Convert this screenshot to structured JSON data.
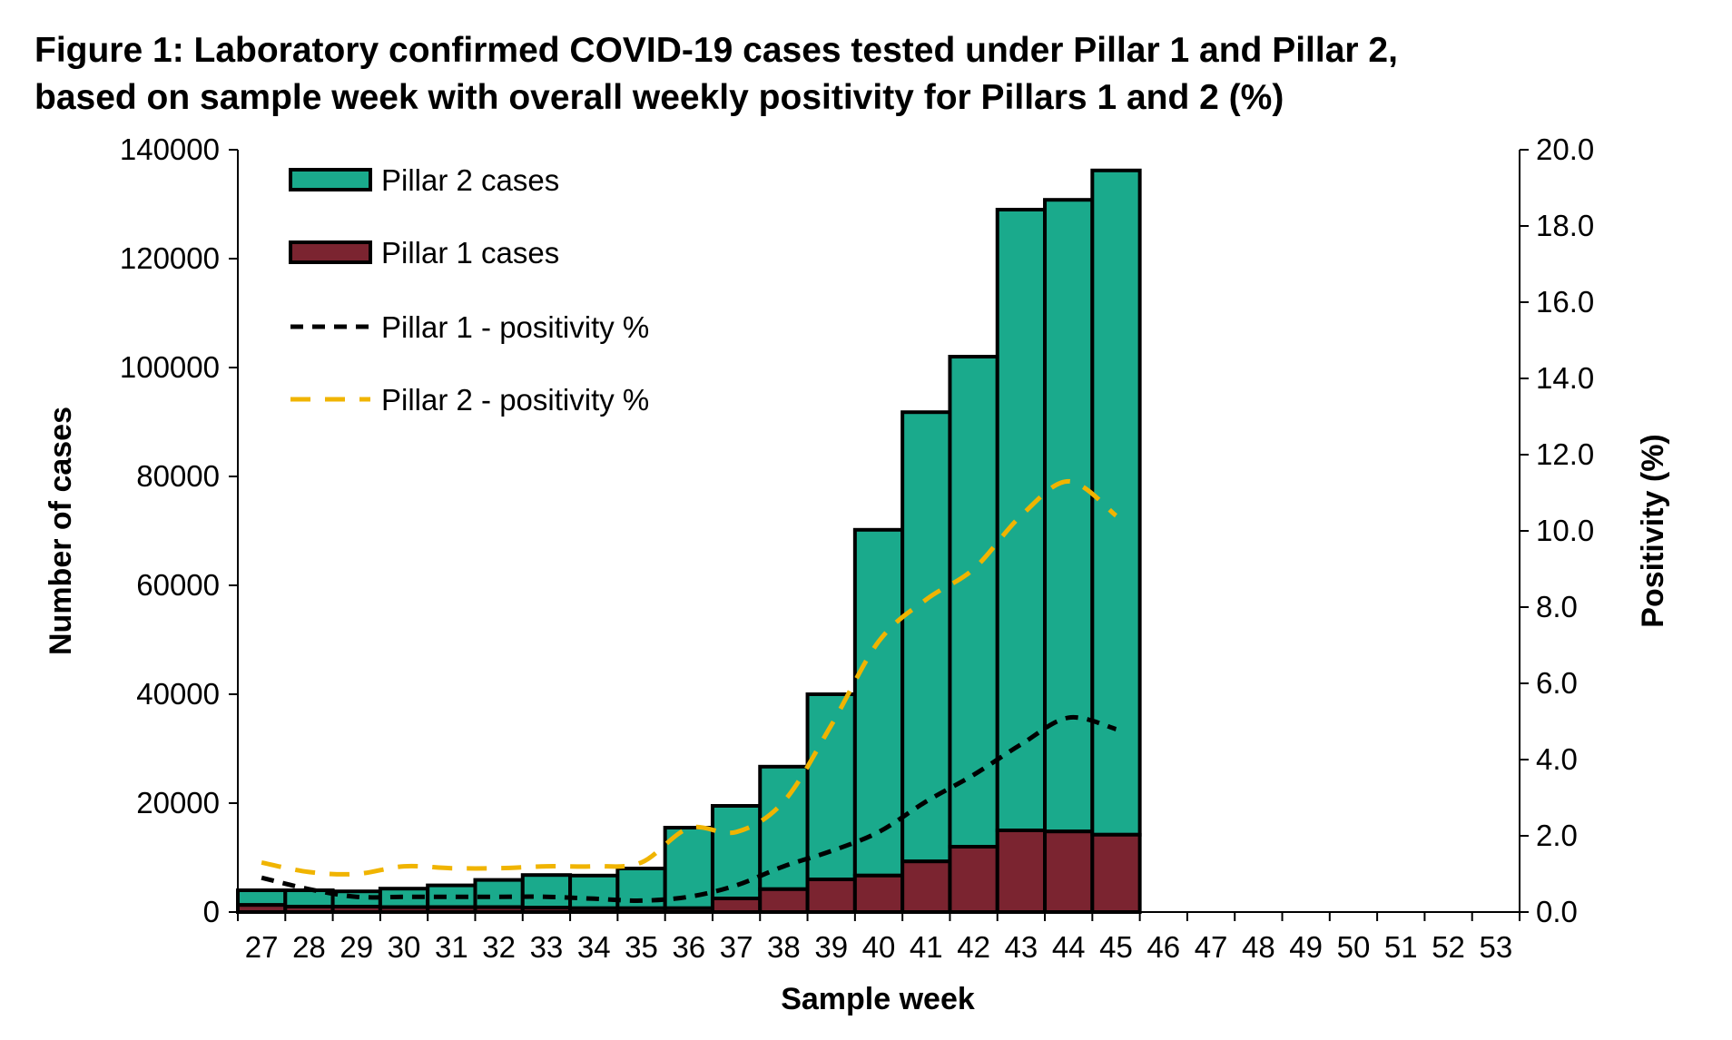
{
  "chart_data": {
    "type": "bar",
    "title_lines": [
      "Figure 1: Laboratory confirmed COVID-19 cases tested under Pillar 1 and Pillar 2,",
      "based on sample week with overall weekly positivity for Pillars 1 and 2 (%)"
    ],
    "xlabel": "Sample week",
    "ylabel": "Number of cases",
    "y2label": "Positivity (%)",
    "categories": [
      "27",
      "28",
      "29",
      "30",
      "31",
      "32",
      "33",
      "34",
      "35",
      "36",
      "37",
      "38",
      "39",
      "40",
      "41",
      "42",
      "43",
      "44",
      "45",
      "46",
      "47",
      "48",
      "49",
      "50",
      "51",
      "52",
      "53"
    ],
    "ylim": [
      0,
      140000
    ],
    "y_ticks": [
      "0",
      "20000",
      "40000",
      "60000",
      "80000",
      "100000",
      "120000",
      "140000"
    ],
    "y2lim": [
      0,
      20
    ],
    "y2_ticks": [
      "0.0",
      "2.0",
      "4.0",
      "6.0",
      "8.0",
      "10.0",
      "12.0",
      "14.0",
      "16.0",
      "18.0",
      "20.0"
    ],
    "stacked": true,
    "legend_position": "top-left",
    "grid": false,
    "series": [
      {
        "name": "Pillar 2 cases",
        "kind": "bar",
        "color": "#1aaa8c",
        "values": [
          2700,
          3000,
          2800,
          3400,
          4000,
          5000,
          6000,
          6000,
          7300,
          14800,
          17000,
          22500,
          34000,
          63500,
          82500,
          90000,
          114000,
          116000,
          122000,
          null,
          null,
          null,
          null,
          null,
          null,
          null,
          null
        ]
      },
      {
        "name": "Pillar 1 cases",
        "kind": "bar",
        "color": "#7b2430",
        "values": [
          1300,
          1000,
          1000,
          900,
          900,
          900,
          800,
          700,
          700,
          700,
          2500,
          4200,
          6000,
          6700,
          9300,
          12000,
          15000,
          14800,
          14200,
          null,
          null,
          null,
          null,
          null,
          null,
          null,
          null
        ]
      },
      {
        "name": "Pillar 1 - positivity %",
        "kind": "line",
        "axis": "right",
        "color": "#000000",
        "dash": "short",
        "values": [
          0.9,
          0.6,
          0.4,
          0.4,
          0.4,
          0.4,
          0.4,
          0.35,
          0.3,
          0.4,
          0.7,
          1.2,
          1.6,
          2.1,
          2.9,
          3.6,
          4.4,
          5.1,
          4.8,
          null,
          null,
          null,
          null,
          null,
          null,
          null,
          null
        ]
      },
      {
        "name": "Pillar 2 - positivity %",
        "kind": "line",
        "axis": "right",
        "color": "#f0b400",
        "dash": "long",
        "values": [
          1.3,
          1.05,
          1.0,
          1.2,
          1.15,
          1.15,
          1.2,
          1.2,
          1.3,
          2.2,
          2.1,
          2.9,
          4.9,
          7.1,
          8.2,
          9.0,
          10.4,
          11.3,
          10.4,
          null,
          null,
          null,
          null,
          null,
          null,
          null,
          null
        ]
      }
    ]
  }
}
